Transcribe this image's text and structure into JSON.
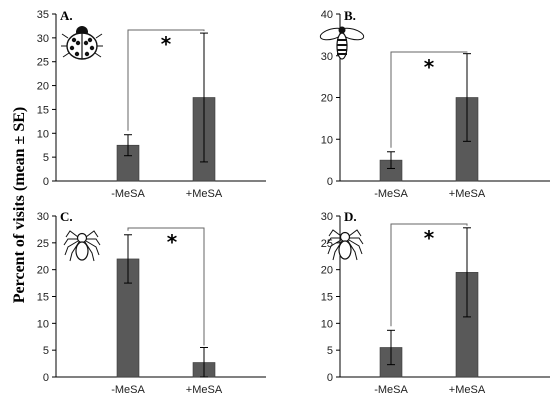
{
  "ylabel": "Percent of visits (mean ± SE)",
  "chart_data": [
    {
      "type": "bar",
      "panel": "A.",
      "icon": "ladybug-icon",
      "categories": [
        "-MeSA",
        "+MeSA"
      ],
      "values": [
        7.5,
        17.5
      ],
      "errors": [
        2.2,
        13.5
      ],
      "ylim": [
        0,
        35
      ],
      "yticks": [
        0,
        5,
        10,
        15,
        20,
        25,
        30,
        35
      ],
      "annotation": "*"
    },
    {
      "type": "bar",
      "panel": "B.",
      "icon": "bee-icon",
      "categories": [
        "-MeSA",
        "+MeSA"
      ],
      "values": [
        5,
        20
      ],
      "errors": [
        2,
        10.5
      ],
      "ylim": [
        0,
        40
      ],
      "yticks": [
        0,
        10,
        20,
        30,
        40
      ],
      "annotation": "*"
    },
    {
      "type": "bar",
      "panel": "C.",
      "icon": "spider-icon",
      "categories": [
        "-MeSA",
        "+MeSA"
      ],
      "values": [
        22,
        2.7
      ],
      "errors": [
        4.5,
        2.8
      ],
      "ylim": [
        0,
        30
      ],
      "yticks": [
        0,
        5,
        10,
        15,
        20,
        25,
        30
      ],
      "annotation": "*"
    },
    {
      "type": "bar",
      "panel": "D.",
      "icon": "spider-icon",
      "categories": [
        "-MeSA",
        "+MeSA"
      ],
      "values": [
        5.5,
        19.5
      ],
      "errors": [
        3.2,
        8.3
      ],
      "ylim": [
        0,
        30
      ],
      "yticks": [
        0,
        5,
        10,
        15,
        20,
        25,
        30
      ],
      "annotation": "*"
    }
  ]
}
